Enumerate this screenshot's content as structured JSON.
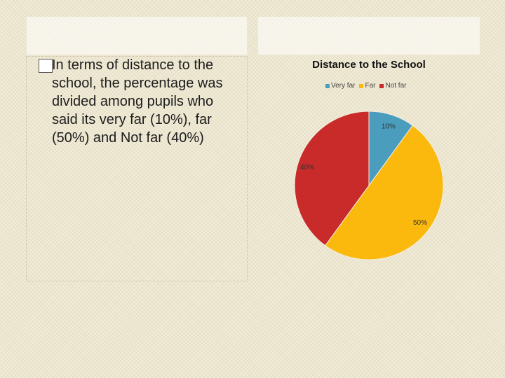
{
  "slide": {
    "bullet_text": "In terms of distance to the school, the percentage was divided among pupils who said its very far (10%), far (50%) and Not far (40%)"
  },
  "chart_data": {
    "type": "pie",
    "title": "Distance to the School",
    "categories": [
      "Very far",
      "Far",
      "Not far"
    ],
    "values": [
      10,
      50,
      40
    ],
    "data_labels": [
      "10%",
      "50%",
      "40%"
    ],
    "colors": [
      "#4a9dbd",
      "#fbb80d",
      "#c92a2a"
    ],
    "legend_position": "top"
  }
}
